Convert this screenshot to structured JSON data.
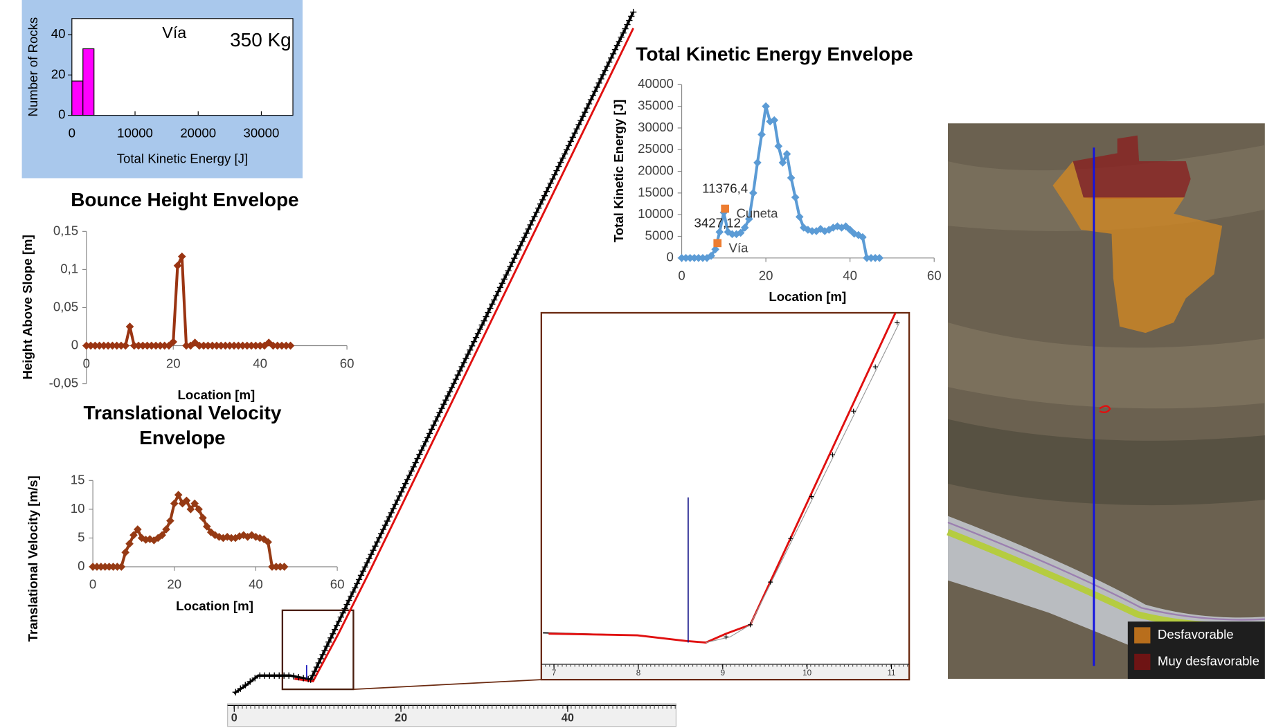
{
  "chart_data": [
    {
      "type": "histogram",
      "xlabel": "Total Kinetic Energy [J]",
      "ylabel": "Number of Rocks",
      "annotations": [
        "Vía",
        "350 Kg"
      ],
      "bins": [
        0,
        1750,
        3500
      ],
      "values": [
        17,
        33
      ],
      "color": "#ff00ff",
      "xlim": [
        0,
        35000
      ],
      "xticks": [
        0,
        10000,
        20000,
        30000
      ],
      "ylim": [
        0,
        48
      ],
      "yticks": [
        0,
        20,
        40
      ]
    },
    {
      "type": "line",
      "title": "Bounce Height Envelope",
      "xlabel": "Location [m]",
      "ylabel": "Height Above Slope [m]",
      "x": [
        0,
        1,
        2,
        3,
        4,
        5,
        6,
        7,
        8,
        9,
        10,
        11,
        12,
        13,
        14,
        15,
        16,
        17,
        18,
        19,
        20,
        21,
        22,
        23,
        24,
        25,
        26,
        27,
        28,
        29,
        30,
        31,
        32,
        33,
        34,
        35,
        36,
        37,
        38,
        39,
        40,
        41,
        42,
        43,
        44,
        45,
        46,
        47
      ],
      "series": [
        {
          "color": "#9a3412",
          "values": [
            0,
            0,
            0,
            0,
            0,
            0,
            0,
            0,
            0,
            0,
            0.025,
            0,
            0,
            0,
            0,
            0,
            0,
            0,
            0,
            0,
            0.005,
            0.105,
            0.117,
            0,
            0,
            0.004,
            0,
            0,
            0,
            0,
            0,
            0,
            0,
            0,
            0,
            0,
            0,
            0,
            0,
            0,
            0,
            0,
            0.004,
            0,
            0,
            0,
            0,
            0
          ]
        }
      ],
      "xlim": [
        0,
        60
      ],
      "xticks": [
        0,
        20,
        40,
        60
      ],
      "ylim": [
        -0.05,
        0.15
      ],
      "yticks": [
        {
          "value": -0.05,
          "label": "-0,05"
        },
        0,
        {
          "value": 0.05,
          "label": "0,05"
        },
        {
          "value": 0.1,
          "label": "0,1"
        },
        {
          "value": 0.15,
          "label": "0,15"
        }
      ]
    },
    {
      "type": "line",
      "title": "Translational Velocity Envelope",
      "xlabel": "Location [m]",
      "ylabel": "Translational Velocity [m/s]",
      "x": [
        0,
        1,
        2,
        3,
        4,
        5,
        6,
        7,
        8,
        9,
        10,
        11,
        12,
        13,
        14,
        15,
        16,
        17,
        18,
        19,
        20,
        21,
        22,
        23,
        24,
        25,
        26,
        27,
        28,
        29,
        30,
        31,
        32,
        33,
        34,
        35,
        36,
        37,
        38,
        39,
        40,
        41,
        42,
        43,
        44,
        45,
        46,
        47
      ],
      "series": [
        {
          "color": "#963a14",
          "values": [
            0,
            0,
            0,
            0,
            0,
            0,
            0,
            0,
            2.5,
            4,
            5.5,
            6.5,
            5,
            4.7,
            4.8,
            4.6,
            5,
            5.5,
            6.5,
            8,
            11,
            12.5,
            11,
            11.5,
            10,
            11,
            10,
            8.5,
            7,
            6,
            5.5,
            5.2,
            5,
            5.2,
            5,
            5,
            5.3,
            5.5,
            5.2,
            5.5,
            5.2,
            5,
            4.8,
            4.3,
            0,
            0,
            0,
            0
          ]
        }
      ],
      "xlim": [
        0,
        60
      ],
      "xticks": [
        0,
        20,
        40,
        60
      ],
      "ylim": [
        0,
        15
      ],
      "yticks": [
        0,
        5,
        10,
        15
      ]
    },
    {
      "type": "line",
      "title": "Total Kinetic Energy Envelope",
      "xlabel": "Location [m]",
      "ylabel": "Total Kinetic Energy [J]",
      "x": [
        0,
        1,
        2,
        3,
        4,
        5,
        6,
        7,
        8,
        9,
        10,
        11,
        12,
        13,
        14,
        15,
        16,
        17,
        18,
        19,
        20,
        21,
        22,
        23,
        24,
        25,
        26,
        27,
        28,
        29,
        30,
        31,
        32,
        33,
        34,
        35,
        36,
        37,
        38,
        39,
        40,
        41,
        42,
        43,
        44,
        45,
        46,
        47
      ],
      "series": [
        {
          "color": "#5b9bd5",
          "values": [
            0,
            0,
            0,
            0,
            0,
            0,
            0,
            500,
            2000,
            6000,
            10500,
            6000,
            5500,
            5500,
            5800,
            7000,
            9000,
            15000,
            22000,
            28500,
            35000,
            31500,
            31800,
            25800,
            22000,
            24000,
            18500,
            14000,
            9500,
            7000,
            6500,
            6200,
            6200,
            6700,
            6200,
            6500,
            7000,
            7300,
            7000,
            7300,
            6500,
            5600,
            5300,
            4800,
            0,
            0,
            0,
            0
          ]
        }
      ],
      "points": {
        "color": "#ed7d31",
        "x": [
          8.5,
          10.3
        ],
        "values": [
          3427.12,
          11376.4
        ],
        "value_labels": [
          "3427,12",
          "11376,4"
        ],
        "labels": [
          "Vía",
          "Cuneta"
        ]
      },
      "xlim": [
        0,
        60
      ],
      "xticks": [
        0,
        20,
        40,
        60
      ],
      "ylim": [
        0,
        40000
      ],
      "yticks": [
        0,
        5000,
        10000,
        15000,
        20000,
        25000,
        30000,
        35000,
        40000
      ]
    },
    {
      "type": "profile",
      "xlim": [
        -0.8,
        53
      ],
      "xticks": [
        0,
        20,
        40
      ],
      "inset_xlim": [
        6.85,
        11.21
      ],
      "inset_xticks": [
        7,
        8,
        9,
        10,
        11
      ]
    }
  ],
  "map": {
    "legend": [
      {
        "label": "Desfavorable",
        "color": "#b86e1c"
      },
      {
        "label": "Muy desfavorable",
        "color": "#6e1414"
      }
    ]
  }
}
